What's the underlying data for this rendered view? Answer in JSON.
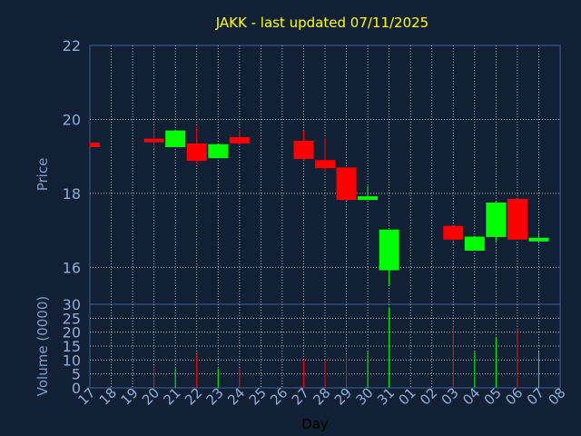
{
  "chart_data": {
    "type": "candlestick",
    "title": "JAKK - last updated 07/11/2025",
    "price_axis": {
      "label": "Price",
      "ylim": [
        15,
        22
      ],
      "ticks": [
        16,
        18,
        20,
        22
      ]
    },
    "volume_axis": {
      "label": "Volume (0000)",
      "ylim": [
        0,
        30
      ],
      "ticks": [
        0,
        5,
        10,
        15,
        20,
        25,
        30
      ]
    },
    "x_axis": {
      "label": "Day",
      "ticks": [
        "17",
        "18",
        "19",
        "20",
        "21",
        "22",
        "23",
        "24",
        "25",
        "26",
        "27",
        "28",
        "29",
        "30",
        "31",
        "01",
        "02",
        "03",
        "04",
        "05",
        "06",
        "07",
        "08"
      ]
    },
    "grid": true,
    "candles": [
      {
        "x": 0,
        "open": 19.37,
        "high": 19.37,
        "low": 19.25,
        "close": 19.25,
        "volume": 0
      },
      {
        "x": 3,
        "open": 19.48,
        "high": 19.8,
        "low": 19.2,
        "close": 19.38,
        "volume": 8
      },
      {
        "x": 4,
        "open": 19.25,
        "high": 19.72,
        "low": 19.25,
        "close": 19.7,
        "volume": 7
      },
      {
        "x": 5,
        "open": 19.35,
        "high": 19.8,
        "low": 18.8,
        "close": 18.88,
        "volume": 12
      },
      {
        "x": 6,
        "open": 18.95,
        "high": 19.33,
        "low": 18.95,
        "close": 19.33,
        "volume": 7
      },
      {
        "x": 7,
        "open": 19.52,
        "high": 19.72,
        "low": 19.3,
        "close": 19.35,
        "volume": 7
      },
      {
        "x": 10,
        "open": 19.42,
        "high": 19.7,
        "low": 18.9,
        "close": 18.93,
        "volume": 10
      },
      {
        "x": 11,
        "open": 18.9,
        "high": 19.5,
        "low": 18.58,
        "close": 18.68,
        "volume": 10
      },
      {
        "x": 12,
        "open": 18.7,
        "high": 18.7,
        "low": 17.82,
        "close": 17.82,
        "volume": 12
      },
      {
        "x": 13,
        "open": 17.82,
        "high": 18.2,
        "low": 17.82,
        "close": 17.92,
        "volume": 13
      },
      {
        "x": 14,
        "open": 15.92,
        "high": 17.02,
        "low": 15.5,
        "close": 17.02,
        "volume": 29
      },
      {
        "x": 17,
        "open": 17.12,
        "high": 17.12,
        "low": 16.7,
        "close": 16.75,
        "volume": 22
      },
      {
        "x": 18,
        "open": 16.45,
        "high": 16.85,
        "low": 16.45,
        "close": 16.83,
        "volume": 13
      },
      {
        "x": 19,
        "open": 16.82,
        "high": 17.78,
        "low": 16.7,
        "close": 17.75,
        "volume": 18
      },
      {
        "x": 20,
        "open": 17.85,
        "high": 17.85,
        "low": 16.75,
        "close": 16.75,
        "volume": 21
      },
      {
        "x": 21,
        "open": 16.7,
        "high": 16.95,
        "low": 16.65,
        "close": 16.8,
        "volume": 13
      }
    ]
  },
  "colors": {
    "background": "#112035",
    "plot_border": "#3c5f96",
    "grid": "#d8d8d8",
    "up": "#00ff00",
    "down": "#ff0000",
    "title": "#ffff00",
    "tick_label": "#8eaed6",
    "axis_label": "#7f9fc4",
    "day_label": "#000000"
  }
}
